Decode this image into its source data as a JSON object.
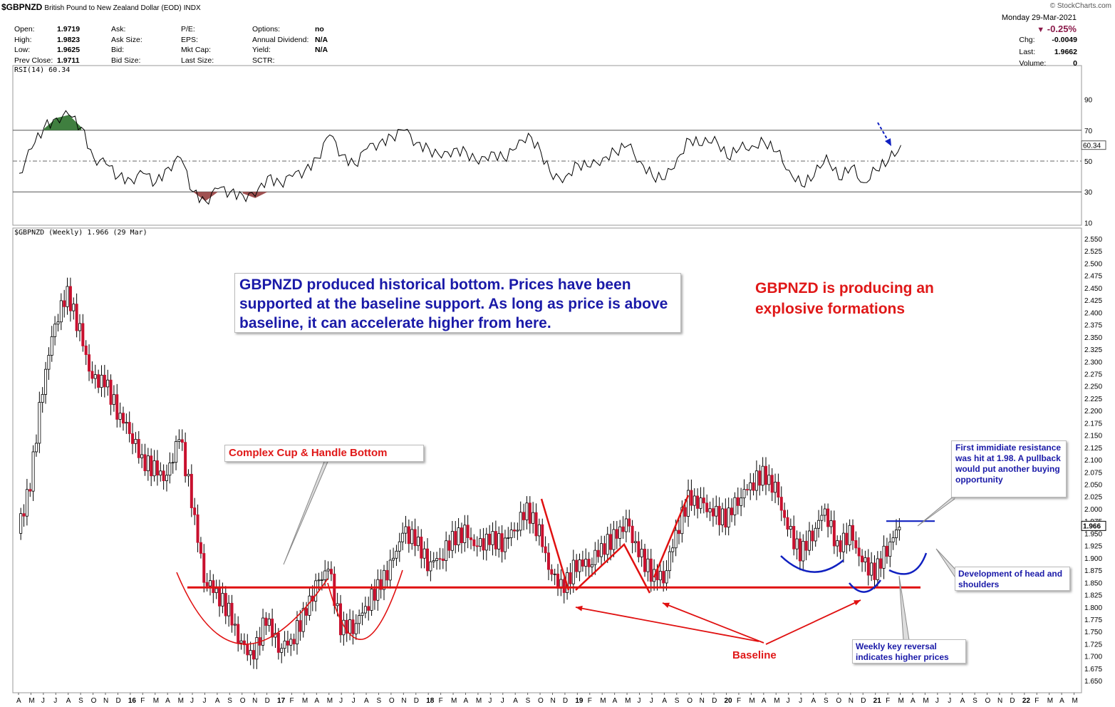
{
  "header": {
    "symbol": "$GBPNZD",
    "description": "British Pound to New Zealand Dollar (EOD)",
    "exchange": "INDX",
    "source": "© StockCharts.com",
    "date": "Monday  29-Mar-2021",
    "change_pct": "-0.25%",
    "stats_left": [
      {
        "label": "Open:",
        "value": "1.9719"
      },
      {
        "label": "High:",
        "value": "1.9823"
      },
      {
        "label": "Low:",
        "value": "1.9625"
      },
      {
        "label": "Prev Close:",
        "value": "1.9711"
      }
    ],
    "stats_mid1": [
      "Ask:",
      "Ask Size:",
      "Bid:",
      "Bid Size:"
    ],
    "stats_mid2": [
      "P/E:",
      "EPS:",
      "Mkt Cap:",
      "Last Size:"
    ],
    "stats_mid3": [
      {
        "label": "Options:",
        "value": "no"
      },
      {
        "label": "Annual Dividend:",
        "value": "N/A"
      },
      {
        "label": "Yield:",
        "value": "N/A"
      },
      {
        "label": "SCTR:",
        "value": ""
      }
    ],
    "stats_right": [
      {
        "label": "Chg:",
        "value": "-0.0049"
      },
      {
        "label": "Last:",
        "value": "1.9662"
      },
      {
        "label": "Volume:",
        "value": "0"
      }
    ]
  },
  "annotations": {
    "blue_box": "GBPNZD produced historical bottom. Prices have been supported at the baseline support. As long as price is above baseline, it can accelerate higher from here.",
    "red_text": "GBPNZD is producing an explosive formations",
    "cup_label": "Complex Cup & Handle Bottom",
    "baseline_label": "Baseline",
    "resistance_note": "First immidiate resistance was hit at 1.98. A pullback would put another buying opportunity",
    "hs_note": "Development of head and shoulders",
    "reversal_note": "Weekly key reversal indicates higher prices"
  },
  "colors": {
    "support": "#e01010",
    "arc_blue": "#1020c0",
    "text_blue": "#1a1aa8",
    "rsi_over": "#3f7f3f",
    "rsi_under": "#a05050"
  },
  "chart_data": {
    "type": "candlestick",
    "frequency": "weekly",
    "rsi_panel": {
      "legend": "RSI(14) 60.34",
      "yticks": [
        90,
        70,
        50,
        30,
        10
      ],
      "last_value_tag": "60.34",
      "overbought": 70,
      "oversold": 30,
      "series": [
        {
          "date": "2015-04",
          "value": 42
        },
        {
          "date": "2015-05",
          "value": 58
        },
        {
          "date": "2015-06",
          "value": 72
        },
        {
          "date": "2015-07",
          "value": 78
        },
        {
          "date": "2015-08",
          "value": 80
        },
        {
          "date": "2015-09",
          "value": 72
        },
        {
          "date": "2015-10",
          "value": 52
        },
        {
          "date": "2015-11",
          "value": 48
        },
        {
          "date": "2015-12",
          "value": 40
        },
        {
          "date": "2016-01",
          "value": 38
        },
        {
          "date": "2016-02",
          "value": 42
        },
        {
          "date": "2016-03",
          "value": 36
        },
        {
          "date": "2016-04",
          "value": 46
        },
        {
          "date": "2016-05",
          "value": 52
        },
        {
          "date": "2016-06",
          "value": 30
        },
        {
          "date": "2016-07",
          "value": 24
        },
        {
          "date": "2016-08",
          "value": 32
        },
        {
          "date": "2016-09",
          "value": 30
        },
        {
          "date": "2016-10",
          "value": 28
        },
        {
          "date": "2016-11",
          "value": 27
        },
        {
          "date": "2016-12",
          "value": 40
        },
        {
          "date": "2017-01",
          "value": 36
        },
        {
          "date": "2017-02",
          "value": 40
        },
        {
          "date": "2017-03",
          "value": 44
        },
        {
          "date": "2017-04",
          "value": 52
        },
        {
          "date": "2017-05",
          "value": 67
        },
        {
          "date": "2017-06",
          "value": 54
        },
        {
          "date": "2017-07",
          "value": 48
        },
        {
          "date": "2017-08",
          "value": 58
        },
        {
          "date": "2017-09",
          "value": 62
        },
        {
          "date": "2017-10",
          "value": 66
        },
        {
          "date": "2017-11",
          "value": 70
        },
        {
          "date": "2017-12",
          "value": 62
        },
        {
          "date": "2018-01",
          "value": 58
        },
        {
          "date": "2018-02",
          "value": 52
        },
        {
          "date": "2018-03",
          "value": 58
        },
        {
          "date": "2018-04",
          "value": 56
        },
        {
          "date": "2018-05",
          "value": 48
        },
        {
          "date": "2018-06",
          "value": 56
        },
        {
          "date": "2018-07",
          "value": 52
        },
        {
          "date": "2018-08",
          "value": 58
        },
        {
          "date": "2018-09",
          "value": 68
        },
        {
          "date": "2018-10",
          "value": 56
        },
        {
          "date": "2018-11",
          "value": 38
        },
        {
          "date": "2018-12",
          "value": 40
        },
        {
          "date": "2019-01",
          "value": 48
        },
        {
          "date": "2019-02",
          "value": 46
        },
        {
          "date": "2019-03",
          "value": 52
        },
        {
          "date": "2019-04",
          "value": 56
        },
        {
          "date": "2019-05",
          "value": 60
        },
        {
          "date": "2019-06",
          "value": 50
        },
        {
          "date": "2019-07",
          "value": 40
        },
        {
          "date": "2019-08",
          "value": 38
        },
        {
          "date": "2019-09",
          "value": 52
        },
        {
          "date": "2019-10",
          "value": 64
        },
        {
          "date": "2019-11",
          "value": 60
        },
        {
          "date": "2019-12",
          "value": 66
        },
        {
          "date": "2020-01",
          "value": 52
        },
        {
          "date": "2020-02",
          "value": 58
        },
        {
          "date": "2020-03",
          "value": 60
        },
        {
          "date": "2020-04",
          "value": 62
        },
        {
          "date": "2020-05",
          "value": 56
        },
        {
          "date": "2020-06",
          "value": 44
        },
        {
          "date": "2020-07",
          "value": 34
        },
        {
          "date": "2020-08",
          "value": 40
        },
        {
          "date": "2020-09",
          "value": 54
        },
        {
          "date": "2020-10",
          "value": 38
        },
        {
          "date": "2020-11",
          "value": 46
        },
        {
          "date": "2020-12",
          "value": 36
        },
        {
          "date": "2021-01",
          "value": 44
        },
        {
          "date": "2021-02",
          "value": 50
        },
        {
          "date": "2021-03",
          "value": 60.34
        }
      ]
    },
    "price_panel": {
      "legend": "$GBPNZD (Weekly) 1.966 (29 Mar)",
      "yticks": [
        "2.550",
        "2.525",
        "2.500",
        "2.475",
        "2.450",
        "2.425",
        "2.400",
        "2.375",
        "2.350",
        "2.325",
        "2.300",
        "2.275",
        "2.250",
        "2.225",
        "2.200",
        "2.175",
        "2.150",
        "2.125",
        "2.100",
        "2.075",
        "2.050",
        "2.025",
        "2.000",
        "1.975",
        "1.950",
        "1.925",
        "1.900",
        "1.875",
        "1.850",
        "1.825",
        "1.800",
        "1.775",
        "1.750",
        "1.725",
        "1.700",
        "1.675",
        "1.650"
      ],
      "ylim": [
        1.65,
        2.55
      ],
      "last_price_tag": "1.966",
      "baseline_support": 1.84,
      "resistance": 1.975,
      "closes": [
        {
          "date": "2015-04",
          "close": 1.95
        },
        {
          "date": "2015-05",
          "close": 2.05
        },
        {
          "date": "2015-06",
          "close": 2.25
        },
        {
          "date": "2015-07",
          "close": 2.38
        },
        {
          "date": "2015-08",
          "close": 2.44
        },
        {
          "date": "2015-09",
          "close": 2.36
        },
        {
          "date": "2015-10",
          "close": 2.26
        },
        {
          "date": "2015-11",
          "close": 2.26
        },
        {
          "date": "2015-12",
          "close": 2.2
        },
        {
          "date": "2016-01",
          "close": 2.16
        },
        {
          "date": "2016-02",
          "close": 2.1
        },
        {
          "date": "2016-03",
          "close": 2.08
        },
        {
          "date": "2016-04",
          "close": 2.06
        },
        {
          "date": "2016-05",
          "close": 2.15
        },
        {
          "date": "2016-06",
          "close": 2.02
        },
        {
          "date": "2016-07",
          "close": 1.86
        },
        {
          "date": "2016-08",
          "close": 1.83
        },
        {
          "date": "2016-09",
          "close": 1.79
        },
        {
          "date": "2016-10",
          "close": 1.72
        },
        {
          "date": "2016-11",
          "close": 1.7
        },
        {
          "date": "2016-12",
          "close": 1.78
        },
        {
          "date": "2017-01",
          "close": 1.72
        },
        {
          "date": "2017-02",
          "close": 1.73
        },
        {
          "date": "2017-03",
          "close": 1.78
        },
        {
          "date": "2017-04",
          "close": 1.84
        },
        {
          "date": "2017-05",
          "close": 1.88
        },
        {
          "date": "2017-06",
          "close": 1.76
        },
        {
          "date": "2017-07",
          "close": 1.76
        },
        {
          "date": "2017-08",
          "close": 1.8
        },
        {
          "date": "2017-09",
          "close": 1.84
        },
        {
          "date": "2017-10",
          "close": 1.88
        },
        {
          "date": "2017-11",
          "close": 1.95
        },
        {
          "date": "2017-12",
          "close": 1.94
        },
        {
          "date": "2018-01",
          "close": 1.89
        },
        {
          "date": "2018-02",
          "close": 1.9
        },
        {
          "date": "2018-03",
          "close": 1.94
        },
        {
          "date": "2018-04",
          "close": 1.95
        },
        {
          "date": "2018-05",
          "close": 1.92
        },
        {
          "date": "2018-06",
          "close": 1.94
        },
        {
          "date": "2018-07",
          "close": 1.93
        },
        {
          "date": "2018-08",
          "close": 1.96
        },
        {
          "date": "2018-09",
          "close": 2.0
        },
        {
          "date": "2018-10",
          "close": 1.95
        },
        {
          "date": "2018-11",
          "close": 1.86
        },
        {
          "date": "2018-12",
          "close": 1.84
        },
        {
          "date": "2019-01",
          "close": 1.89
        },
        {
          "date": "2019-02",
          "close": 1.89
        },
        {
          "date": "2019-03",
          "close": 1.92
        },
        {
          "date": "2019-04",
          "close": 1.94
        },
        {
          "date": "2019-05",
          "close": 1.97
        },
        {
          "date": "2019-06",
          "close": 1.91
        },
        {
          "date": "2019-07",
          "close": 1.87
        },
        {
          "date": "2019-08",
          "close": 1.86
        },
        {
          "date": "2019-09",
          "close": 1.95
        },
        {
          "date": "2019-10",
          "close": 2.02
        },
        {
          "date": "2019-11",
          "close": 2.01
        },
        {
          "date": "2019-12",
          "close": 1.99
        },
        {
          "date": "2020-01",
          "close": 1.98
        },
        {
          "date": "2020-02",
          "close": 2.02
        },
        {
          "date": "2020-03",
          "close": 2.05
        },
        {
          "date": "2020-04",
          "close": 2.07
        },
        {
          "date": "2020-05",
          "close": 2.04
        },
        {
          "date": "2020-06",
          "close": 1.96
        },
        {
          "date": "2020-07",
          "close": 1.91
        },
        {
          "date": "2020-08",
          "close": 1.95
        },
        {
          "date": "2020-09",
          "close": 2.0
        },
        {
          "date": "2020-10",
          "close": 1.92
        },
        {
          "date": "2020-11",
          "close": 1.95
        },
        {
          "date": "2020-12",
          "close": 1.89
        },
        {
          "date": "2021-01",
          "close": 1.87
        },
        {
          "date": "2021-02",
          "close": 1.92
        },
        {
          "date": "2021-03",
          "close": 1.966
        }
      ]
    },
    "x_months": [
      "A",
      "M",
      "J",
      "J",
      "A",
      "S",
      "O",
      "N",
      "D",
      "16",
      "F",
      "M",
      "A",
      "M",
      "J",
      "J",
      "A",
      "S",
      "O",
      "N",
      "D",
      "17",
      "F",
      "M",
      "A",
      "M",
      "J",
      "J",
      "A",
      "S",
      "O",
      "N",
      "D",
      "18",
      "F",
      "M",
      "A",
      "M",
      "J",
      "J",
      "A",
      "S",
      "O",
      "N",
      "D",
      "19",
      "F",
      "M",
      "A",
      "M",
      "J",
      "J",
      "A",
      "S",
      "O",
      "N",
      "D",
      "20",
      "F",
      "M",
      "A",
      "M",
      "J",
      "J",
      "A",
      "S",
      "O",
      "N",
      "D",
      "21",
      "F",
      "M",
      "A",
      "M",
      "J",
      "J",
      "A",
      "S",
      "O",
      "N",
      "D",
      "22",
      "F",
      "M",
      "A",
      "M"
    ]
  }
}
